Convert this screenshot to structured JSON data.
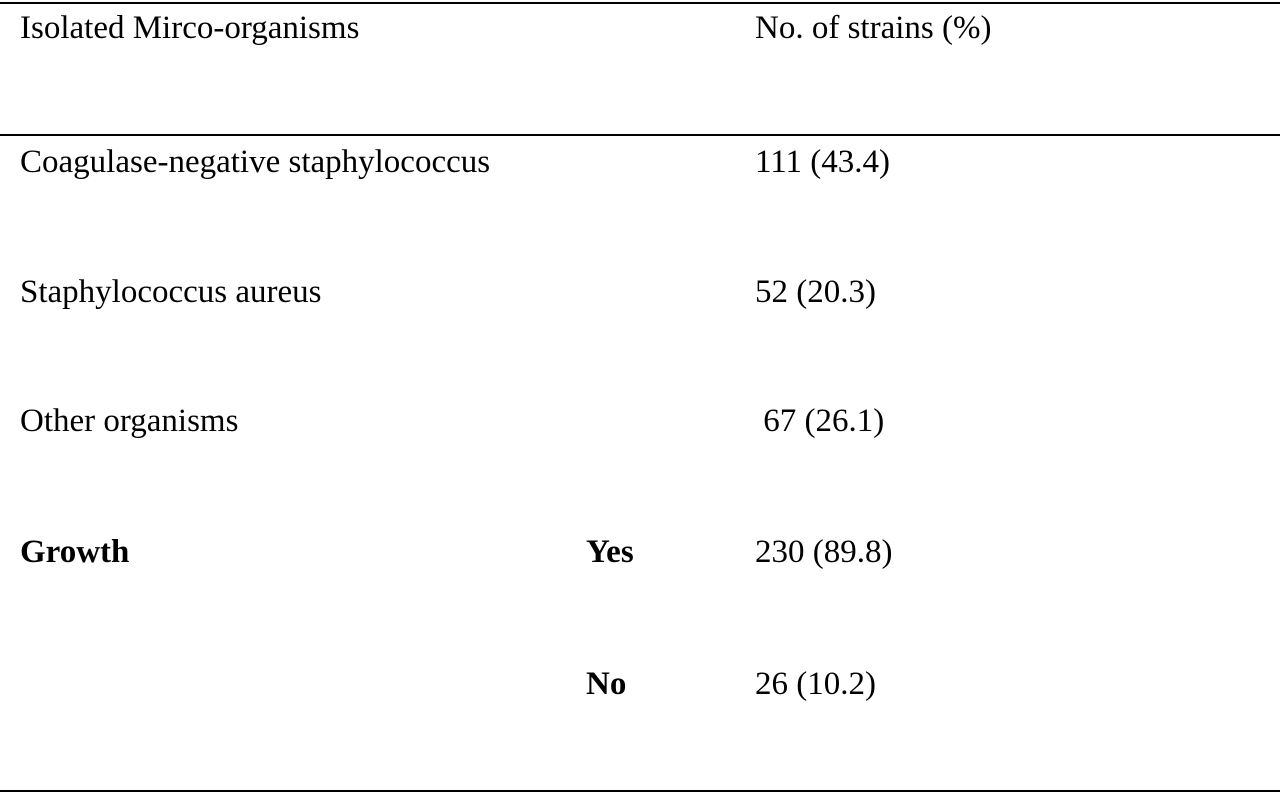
{
  "table": {
    "headers": {
      "organism": "Isolated Mirco-organisms",
      "strains": "No. of strains (%)"
    },
    "rows": [
      {
        "organism": "Coagulase-negative staphylococcus",
        "subgroup": "",
        "strains": "111 (43.4)"
      },
      {
        "organism": "Staphylococcus aureus",
        "subgroup": "",
        "strains": "52 (20.3)"
      },
      {
        "organism": "Other organisms",
        "subgroup": "",
        "strains": " 67 (26.1)"
      },
      {
        "organism": "Growth",
        "subgroup": "Yes",
        "strains": "230 (89.8)"
      },
      {
        "organism": "",
        "subgroup": "No",
        "strains": "26 (10.2)"
      }
    ]
  }
}
